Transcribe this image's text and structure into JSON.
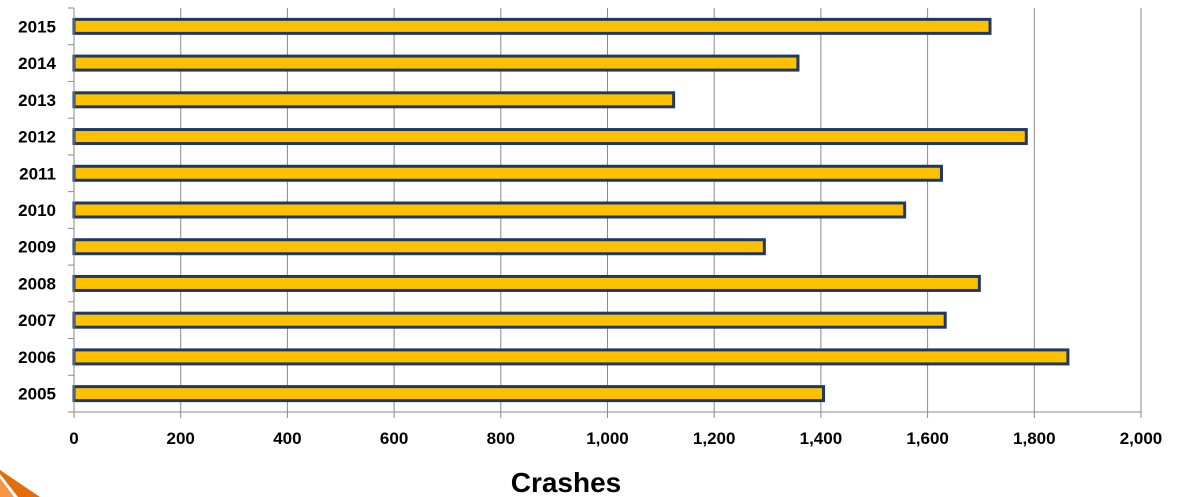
{
  "chart_data": {
    "type": "bar",
    "orientation": "horizontal",
    "categories": [
      "2005",
      "2006",
      "2007",
      "2008",
      "2009",
      "2010",
      "2011",
      "2012",
      "2013",
      "2014",
      "2015"
    ],
    "values": [
      1405,
      1863,
      1633,
      1697,
      1294,
      1557,
      1626,
      1785,
      1124,
      1357,
      1717
    ],
    "xlabel": "Crashes",
    "ylabel": "",
    "xlim": [
      0,
      2000
    ],
    "xticks": [
      0,
      200,
      400,
      600,
      800,
      1000,
      1200,
      1400,
      1600,
      1800,
      2000
    ],
    "xtick_labels": [
      "0",
      "200",
      "400",
      "600",
      "800",
      "1,000",
      "1,200",
      "1,400",
      "1,600",
      "1,800",
      "2,000"
    ],
    "grid": "vertical",
    "bar_color": "#FFC000",
    "bar_edge_color": "#1F3864"
  }
}
